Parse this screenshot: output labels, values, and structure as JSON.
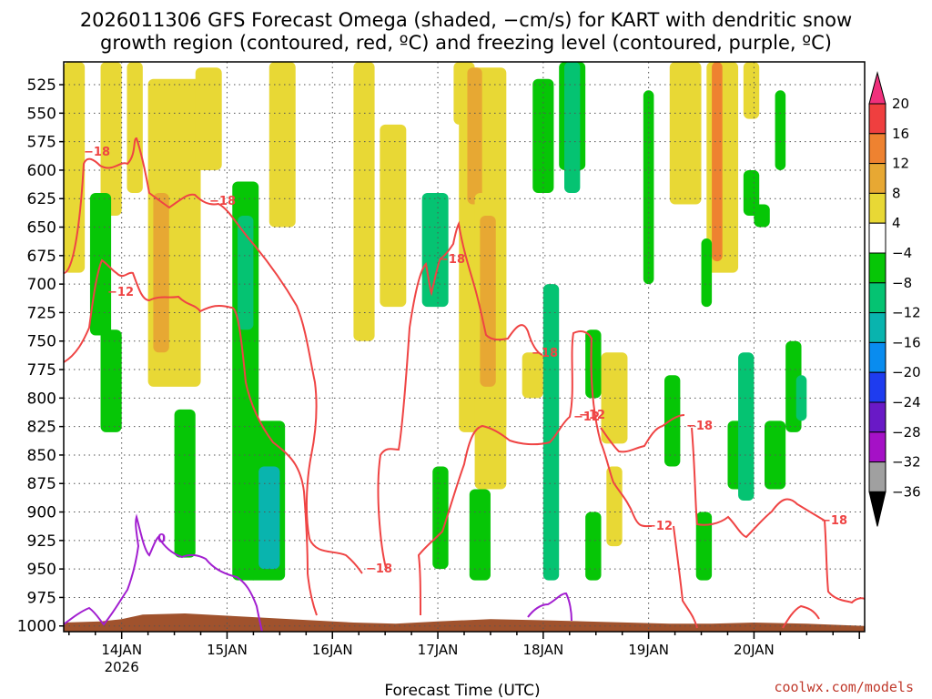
{
  "chart_data": {
    "type": "time-height cross section",
    "title_line1": "2026011306 GFS Forecast Omega (shaded, −cm/s) for KART with dendritic snow",
    "title_line2": "growth region (contoured, red, ºC) and freezing level (contoured, purple, ºC)",
    "xlabel": "Forecast Time (UTC)",
    "credit": "coolwx.com/models",
    "pressure_levels": [
      525,
      550,
      575,
      600,
      625,
      650,
      675,
      700,
      725,
      750,
      775,
      800,
      825,
      850,
      875,
      900,
      925,
      950,
      975,
      1000
    ],
    "y_labels": [
      "525",
      "550",
      "575",
      "600",
      "625",
      "650",
      "675",
      "700",
      "725",
      "750",
      "775",
      "800",
      "825",
      "850",
      "875",
      "900",
      "925",
      "950",
      "975",
      "1000"
    ],
    "ylim_hpa": [
      505,
      1005
    ],
    "x_days": [
      "14JAN",
      "15JAN",
      "16JAN",
      "17JAN",
      "18JAN",
      "19JAN",
      "20JAN"
    ],
    "x_year": "2026",
    "xlim_days": [
      -0.55,
      7.05
    ],
    "colorbar": {
      "labels": [
        "20",
        "16",
        "12",
        "8",
        "4",
        "−4",
        "−8",
        "−12",
        "−16",
        "−20",
        "−24",
        "−28",
        "−32",
        "−36"
      ],
      "colors": [
        "#f0307c",
        "#ef3f3f",
        "#ee8230",
        "#e7a833",
        "#e8d835",
        "#ffffff",
        "#06c606",
        "#05c372",
        "#09b4ae",
        "#098cef",
        "#1e3cef",
        "#6919c6",
        "#a511c6",
        "#a0a0a0",
        "#000000"
      ]
    },
    "contour_labels": {
      "dendritic": [
        "−18",
        "−18",
        "−18",
        "−12",
        "−12",
        "−18",
        "−12",
        "−18",
        "−18",
        "−12",
        "−18"
      ],
      "freezing": [
        "0"
      ]
    },
    "omega_regions": [
      {
        "c": "#e8d835",
        "t0": -0.55,
        "t1": -0.35,
        "p0": 505,
        "p1": 690
      },
      {
        "c": "#e8d835",
        "t0": -0.2,
        "t1": 0.0,
        "p0": 505,
        "p1": 640
      },
      {
        "c": "#e8d835",
        "t0": 0.05,
        "t1": 0.2,
        "p0": 505,
        "p1": 620
      },
      {
        "c": "#e8d835",
        "t0": 0.25,
        "t1": 0.75,
        "p0": 520,
        "p1": 790
      },
      {
        "c": "#e7a833",
        "t0": 0.3,
        "t1": 0.45,
        "p0": 620,
        "p1": 760
      },
      {
        "c": "#e8d835",
        "t0": 0.7,
        "t1": 0.95,
        "p0": 510,
        "p1": 600
      },
      {
        "c": "#e8d835",
        "t0": 1.4,
        "t1": 1.65,
        "p0": 505,
        "p1": 650
      },
      {
        "c": "#e8d835",
        "t0": 2.2,
        "t1": 2.4,
        "p0": 505,
        "p1": 750
      },
      {
        "c": "#e8d835",
        "t0": 2.45,
        "t1": 2.7,
        "p0": 560,
        "p1": 720
      },
      {
        "c": "#e8d835",
        "t0": 3.15,
        "t1": 3.35,
        "p0": 505,
        "p1": 560
      },
      {
        "c": "#e8d835",
        "t0": 3.2,
        "t1": 3.65,
        "p0": 510,
        "p1": 830
      },
      {
        "c": "#e7a833",
        "t0": 3.28,
        "t1": 3.42,
        "p0": 510,
        "p1": 630
      },
      {
        "c": "#e8d835",
        "t0": 3.35,
        "t1": 3.65,
        "p0": 620,
        "p1": 880
      },
      {
        "c": "#e7a833",
        "t0": 3.4,
        "t1": 3.55,
        "p0": 640,
        "p1": 790
      },
      {
        "c": "#e8d835",
        "t0": 3.8,
        "t1": 4.0,
        "p0": 760,
        "p1": 800
      },
      {
        "c": "#e8d835",
        "t0": 4.55,
        "t1": 4.8,
        "p0": 760,
        "p1": 840
      },
      {
        "c": "#e8d835",
        "t0": 4.6,
        "t1": 4.75,
        "p0": 860,
        "p1": 930
      },
      {
        "c": "#e8d835",
        "t0": 5.2,
        "t1": 5.5,
        "p0": 505,
        "p1": 630
      },
      {
        "c": "#e8d835",
        "t0": 5.55,
        "t1": 5.85,
        "p0": 505,
        "p1": 690
      },
      {
        "c": "#ee8230",
        "t0": 5.6,
        "t1": 5.7,
        "p0": 505,
        "p1": 680
      },
      {
        "c": "#e8d835",
        "t0": 5.9,
        "t1": 6.05,
        "p0": 505,
        "p1": 555
      },
      {
        "c": "#06c606",
        "t0": -0.3,
        "t1": -0.1,
        "p0": 620,
        "p1": 745
      },
      {
        "c": "#06c606",
        "t0": -0.2,
        "t1": 0.0,
        "p0": 740,
        "p1": 830
      },
      {
        "c": "#06c606",
        "t0": 0.5,
        "t1": 0.7,
        "p0": 810,
        "p1": 940
      },
      {
        "c": "#06c606",
        "t0": 1.05,
        "t1": 1.3,
        "p0": 610,
        "p1": 960
      },
      {
        "c": "#05c372",
        "t0": 1.1,
        "t1": 1.25,
        "p0": 640,
        "p1": 740
      },
      {
        "c": "#06c606",
        "t0": 1.2,
        "t1": 1.55,
        "p0": 820,
        "p1": 960
      },
      {
        "c": "#09b4ae",
        "t0": 1.3,
        "t1": 1.5,
        "p0": 860,
        "p1": 950
      },
      {
        "c": "#05c372",
        "t0": 2.85,
        "t1": 3.1,
        "p0": 620,
        "p1": 720
      },
      {
        "c": "#06c606",
        "t0": 2.95,
        "t1": 3.1,
        "p0": 860,
        "p1": 950
      },
      {
        "c": "#06c606",
        "t0": 3.3,
        "t1": 3.5,
        "p0": 880,
        "p1": 960
      },
      {
        "c": "#06c606",
        "t0": 3.9,
        "t1": 4.1,
        "p0": 520,
        "p1": 620
      },
      {
        "c": "#05c372",
        "t0": 4.0,
        "t1": 4.15,
        "p0": 700,
        "p1": 960
      },
      {
        "c": "#06c606",
        "t0": 4.15,
        "t1": 4.4,
        "p0": 505,
        "p1": 600
      },
      {
        "c": "#05c372",
        "t0": 4.2,
        "t1": 4.35,
        "p0": 505,
        "p1": 620
      },
      {
        "c": "#06c606",
        "t0": 4.4,
        "t1": 4.55,
        "p0": 740,
        "p1": 800
      },
      {
        "c": "#06c606",
        "t0": 4.4,
        "t1": 4.55,
        "p0": 900,
        "p1": 960
      },
      {
        "c": "#06c606",
        "t0": 4.95,
        "t1": 5.05,
        "p0": 530,
        "p1": 700
      },
      {
        "c": "#06c606",
        "t0": 5.15,
        "t1": 5.3,
        "p0": 780,
        "p1": 860
      },
      {
        "c": "#06c606",
        "t0": 5.5,
        "t1": 5.6,
        "p0": 660,
        "p1": 720
      },
      {
        "c": "#06c606",
        "t0": 5.45,
        "t1": 5.6,
        "p0": 900,
        "p1": 960
      },
      {
        "c": "#06c606",
        "t0": 5.75,
        "t1": 5.95,
        "p0": 820,
        "p1": 880
      },
      {
        "c": "#06c606",
        "t0": 5.9,
        "t1": 6.05,
        "p0": 600,
        "p1": 640
      },
      {
        "c": "#06c606",
        "t0": 6.0,
        "t1": 6.15,
        "p0": 630,
        "p1": 650
      },
      {
        "c": "#06c606",
        "t0": 6.2,
        "t1": 6.3,
        "p0": 530,
        "p1": 600
      },
      {
        "c": "#05c372",
        "t0": 5.85,
        "t1": 6.0,
        "p0": 760,
        "p1": 890
      },
      {
        "c": "#06c606",
        "t0": 6.1,
        "t1": 6.3,
        "p0": 820,
        "p1": 880
      },
      {
        "c": "#06c606",
        "t0": 6.3,
        "t1": 6.45,
        "p0": 750,
        "p1": 830
      },
      {
        "c": "#05c372",
        "t0": 6.4,
        "t1": 6.5,
        "p0": 780,
        "p1": 820
      }
    ],
    "ground_profile_hpa": [
      [
        -0.55,
        997
      ],
      [
        -0.2,
        996
      ],
      [
        0.0,
        994
      ],
      [
        0.2,
        990
      ],
      [
        0.6,
        989
      ],
      [
        1.0,
        991
      ],
      [
        1.4,
        993
      ],
      [
        1.8,
        995
      ],
      [
        2.2,
        997
      ],
      [
        2.6,
        998
      ],
      [
        3.0,
        996
      ],
      [
        3.5,
        994
      ],
      [
        4.0,
        995
      ],
      [
        4.4,
        996
      ],
      [
        4.8,
        997
      ],
      [
        5.2,
        998
      ],
      [
        5.6,
        998
      ],
      [
        6.0,
        997
      ],
      [
        6.5,
        998
      ],
      [
        7.05,
        1000
      ]
    ]
  }
}
